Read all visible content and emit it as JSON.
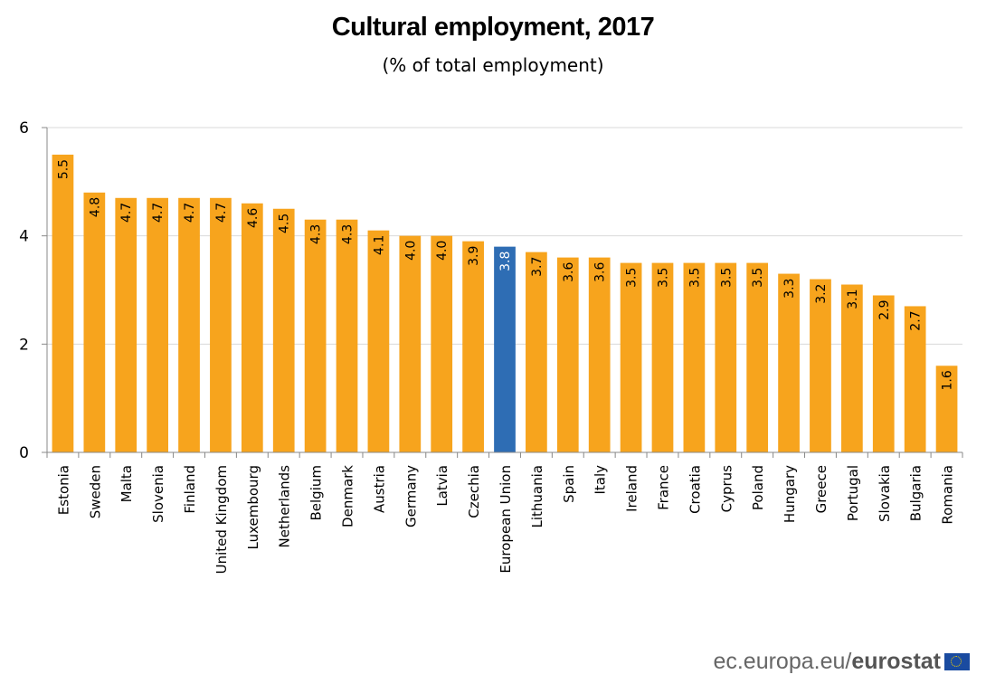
{
  "chart_data": {
    "type": "bar",
    "title": "Cultural employment, 2017",
    "subtitle": "(%  of total employment)",
    "xlabel": "",
    "ylabel": "",
    "ylim": [
      0,
      6
    ],
    "yticks": [
      0,
      2,
      4,
      6
    ],
    "ytick_labels": [
      "0",
      "2",
      "4",
      "6"
    ],
    "grid": true,
    "legend": "none",
    "categories": [
      "Estonia",
      "Sweden",
      "Malta",
      "Slovenia",
      "Finland",
      "United Kingdom",
      "Luxembourg",
      "Netherlands",
      "Belgium",
      "Denmark",
      "Austria",
      "Germany",
      "Latvia",
      "Czechia",
      "European Union",
      "Lithuania",
      "Spain",
      "Italy",
      "Ireland",
      "France",
      "Croatia",
      "Cyprus",
      "Poland",
      "Hungary",
      "Greece",
      "Portugal",
      "Slovakia",
      "Bulgaria",
      "Romania"
    ],
    "values": [
      5.5,
      4.8,
      4.7,
      4.7,
      4.7,
      4.7,
      4.6,
      4.5,
      4.3,
      4.3,
      4.1,
      4.0,
      4.0,
      3.9,
      3.8,
      3.7,
      3.6,
      3.6,
      3.5,
      3.5,
      3.5,
      3.5,
      3.5,
      3.3,
      3.2,
      3.1,
      2.9,
      2.7,
      1.6
    ],
    "data_labels": [
      "5.5",
      "4.8",
      "4.7",
      "4.7",
      "4.7",
      "4.7",
      "4.6",
      "4.5",
      "4.3",
      "4.3",
      "4.1",
      "4.0",
      "4.0",
      "3.9",
      "3.8",
      "3.7",
      "3.6",
      "3.6",
      "3.5",
      "3.5",
      "3.5",
      "3.5",
      "3.5",
      "3.3",
      "3.2",
      "3.1",
      "2.9",
      "2.7",
      "1.6"
    ],
    "highlight": "European Union",
    "colors": {
      "default": "#f7a41d",
      "highlight": "#2e6db4",
      "grid": "#d9d9d9",
      "axis": "#888888"
    }
  },
  "footer": {
    "source_prefix": "ec.europa.eu/",
    "source_brand": "eurostat",
    "logo_icon": "eu-flag-icon"
  }
}
